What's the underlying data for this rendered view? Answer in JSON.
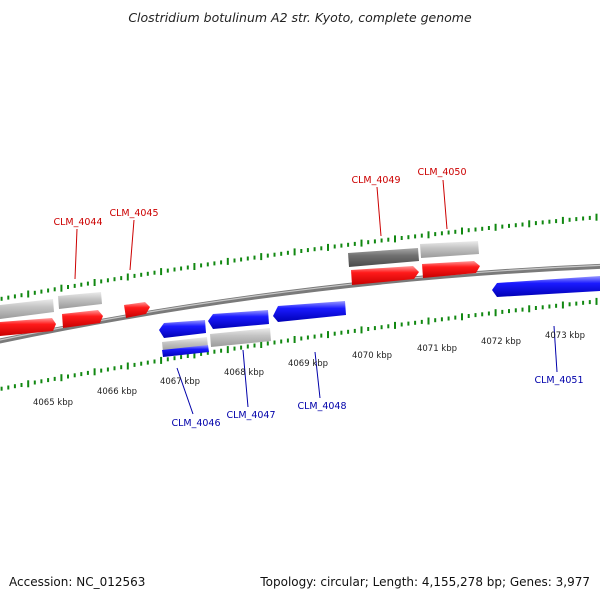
{
  "title": "Clostridium botulinum A2 str. Kyoto, complete genome",
  "accession": "Accession: NC_012563",
  "topology": "Topology: circular; Length: 4,155,278 bp; Genes: 3,977",
  "kbp_labels": [
    "4065 kbp",
    "4066 kbp",
    "4067 kbp",
    "4068 kbp",
    "4069 kbp",
    "4070 kbp",
    "4071 kbp",
    "4072 kbp",
    "4073 kbp"
  ],
  "gene_labels": {
    "clm_4044": "CLM_4044",
    "clm_4045": "CLM_4045",
    "clm_4046": "CLM_4046",
    "clm_4047": "CLM_4047",
    "clm_4048": "CLM_4048",
    "clm_4049": "CLM_4049",
    "clm_4050": "CLM_4050",
    "clm_4051": "CLM_4051"
  },
  "colors": {
    "forward": "#ff0000",
    "reverse": "#0000ff",
    "forward_label": "#cc0000",
    "reverse_label": "#0000aa",
    "tick": "#118811",
    "backbone": "#8a8a8a",
    "feature_grey": "#bdbdbd",
    "feature_dark": "#707070"
  }
}
